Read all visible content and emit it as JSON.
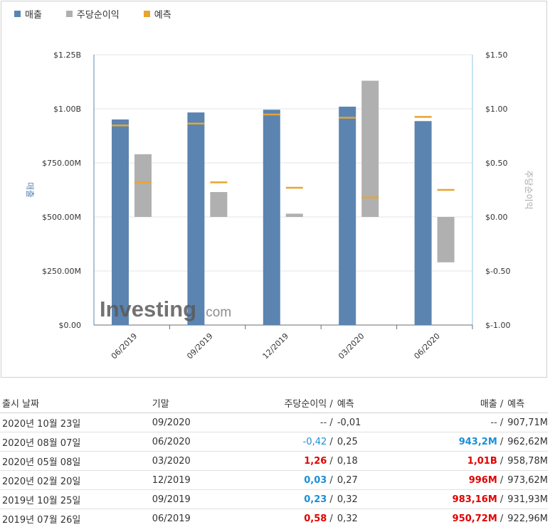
{
  "legend": [
    {
      "label": "매출",
      "color": "#5b84b1"
    },
    {
      "label": "주당순이익",
      "color": "#b0b0b0"
    },
    {
      "label": "예측",
      "color": "#e8a530"
    }
  ],
  "chart_data": {
    "type": "bar",
    "categories": [
      "06/2019",
      "09/2019",
      "12/2019",
      "03/2020",
      "06/2020"
    ],
    "left_axis": {
      "title": "매출",
      "ticks": [
        "$0.00",
        "$250.00M",
        "$500.00M",
        "$750.00M",
        "$1.00B",
        "$1.25B"
      ],
      "range": [
        0,
        1.25
      ],
      "unit": "B"
    },
    "right_axis": {
      "title": "주당순이익",
      "ticks": [
        "$-1.00",
        "$-0.50",
        "$0.00",
        "$0.50",
        "$1.00",
        "$1.50"
      ],
      "range": [
        -1.0,
        1.5
      ]
    },
    "series": [
      {
        "name": "매출",
        "axis": "left",
        "values": [
          0.95072,
          0.98316,
          0.996,
          1.01,
          0.9432
        ]
      },
      {
        "name": "주당순이익",
        "axis": "right",
        "values": [
          0.58,
          0.23,
          0.03,
          1.26,
          -0.42
        ]
      },
      {
        "name": "예측",
        "axis": "left",
        "values": [
          0.92296,
          0.93193,
          0.97362,
          0.95878,
          0.96262
        ]
      },
      {
        "name": "예측",
        "axis": "right",
        "values": [
          0.32,
          0.32,
          0.27,
          0.18,
          0.25
        ]
      }
    ],
    "grid": true,
    "watermark": "Investing.com"
  },
  "table": {
    "headers": {
      "date": "출시 날짜",
      "period": "기말",
      "eps": "주당순이익",
      "eps_forecast": "예측",
      "revenue": "매출",
      "revenue_forecast": "예측",
      "sep": "/"
    },
    "rows": [
      {
        "date": "2020년 10월 23일",
        "period": "09/2020",
        "eps": "--",
        "eps_forecast": "-0,01",
        "revenue": "--",
        "revenue_forecast": "907,71M",
        "eps_style": "grey",
        "rev_style": "grey"
      },
      {
        "date": "2020년 08월 07일",
        "period": "06/2020",
        "eps": "-0,42",
        "eps_forecast": "0,25",
        "revenue": "943,2M",
        "revenue_forecast": "962,62M",
        "eps_style": "neg",
        "rev_style": "pos"
      },
      {
        "date": "2020년 05월 08일",
        "period": "03/2020",
        "eps": "1,26",
        "eps_forecast": "0,18",
        "revenue": "1,01B",
        "revenue_forecast": "958,78M",
        "eps_style": "red",
        "rev_style": "red"
      },
      {
        "date": "2020년 02월 20일",
        "period": "12/2019",
        "eps": "0,03",
        "eps_forecast": "0,27",
        "revenue": "996M",
        "revenue_forecast": "973,62M",
        "eps_style": "pos",
        "rev_style": "red"
      },
      {
        "date": "2019년 10월 25일",
        "period": "09/2019",
        "eps": "0,23",
        "eps_forecast": "0,32",
        "revenue": "983,16M",
        "revenue_forecast": "931,93M",
        "eps_style": "pos",
        "rev_style": "red"
      },
      {
        "date": "2019년 07월 26일",
        "period": "06/2019",
        "eps": "0,58",
        "eps_forecast": "0,32",
        "revenue": "950,72M",
        "revenue_forecast": "922,96M",
        "eps_style": "red",
        "rev_style": "red"
      }
    ]
  }
}
